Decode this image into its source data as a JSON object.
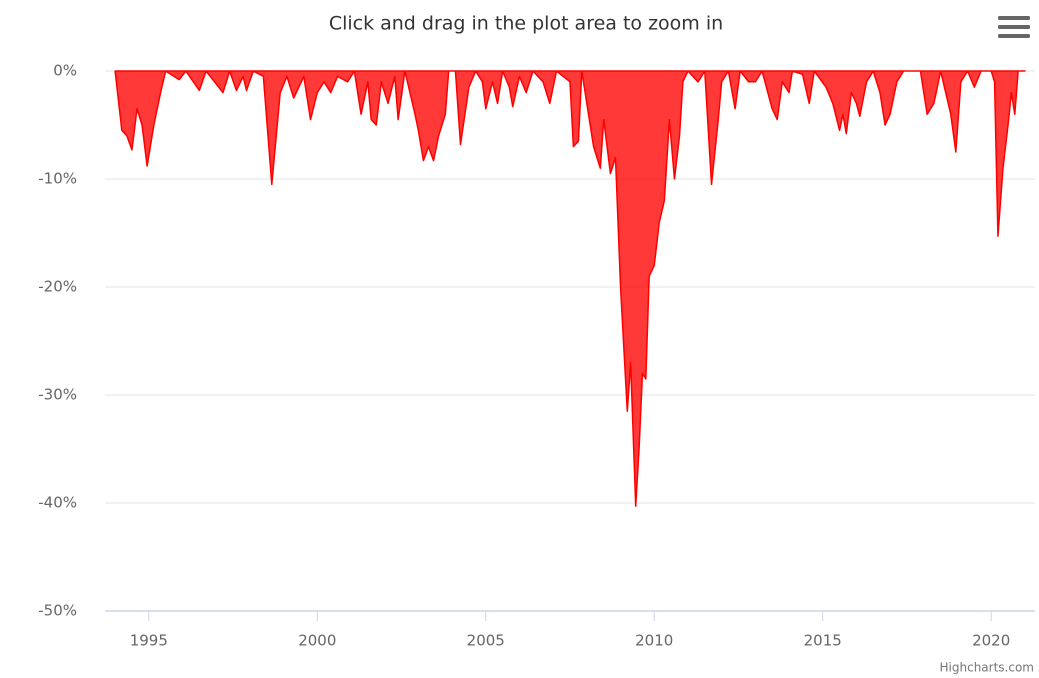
{
  "chart_data": {
    "type": "area",
    "title": "Click and drag in the plot area to zoom in",
    "credits": "Highcharts.com",
    "color": "#ff0000",
    "grid": true,
    "xlim": [
      1993.7,
      2021.3
    ],
    "xticks": [
      1995,
      2000,
      2005,
      2010,
      2015,
      2020
    ],
    "ylim": [
      -50,
      0
    ],
    "yticks": [
      {
        "value": 0,
        "label": "0%"
      },
      {
        "value": -10,
        "label": "-10%"
      },
      {
        "value": -20,
        "label": "-20%"
      },
      {
        "value": -30,
        "label": "-30%"
      },
      {
        "value": -40,
        "label": "-40%"
      },
      {
        "value": -50,
        "label": "-50%"
      }
    ],
    "x": [
      1994.0,
      1994.2,
      1994.35,
      1994.5,
      1994.65,
      1994.8,
      1994.95,
      1995.15,
      1995.35,
      1995.5,
      1995.9,
      1996.1,
      1996.5,
      1996.7,
      1997.2,
      1997.4,
      1997.6,
      1997.8,
      1997.9,
      1998.1,
      1998.4,
      1998.65,
      1998.9,
      1999.1,
      1999.3,
      1999.6,
      1999.8,
      2000.0,
      2000.2,
      2000.4,
      2000.6,
      2000.9,
      2001.1,
      2001.3,
      2001.5,
      2001.6,
      2001.75,
      2001.9,
      2002.1,
      2002.3,
      2002.4,
      2002.6,
      2002.9,
      2003.0,
      2003.15,
      2003.3,
      2003.45,
      2003.6,
      2003.8,
      2003.9,
      2004.1,
      2004.25,
      2004.5,
      2004.7,
      2004.9,
      2005.0,
      2005.2,
      2005.35,
      2005.5,
      2005.7,
      2005.8,
      2006.0,
      2006.2,
      2006.4,
      2006.7,
      2006.9,
      2007.1,
      2007.5,
      2007.6,
      2007.75,
      2007.85,
      2008.0,
      2008.2,
      2008.4,
      2008.5,
      2008.7,
      2008.85,
      2009.0,
      2009.2,
      2009.3,
      2009.45,
      2009.55,
      2009.65,
      2009.75,
      2009.85,
      2010.0,
      2010.15,
      2010.3,
      2010.45,
      2010.6,
      2010.75,
      2010.85,
      2011.0,
      2011.3,
      2011.5,
      2011.7,
      2011.9,
      2012.0,
      2012.2,
      2012.4,
      2012.55,
      2012.8,
      2013.0,
      2013.2,
      2013.5,
      2013.65,
      2013.8,
      2014.0,
      2014.1,
      2014.4,
      2014.6,
      2014.75,
      2015.1,
      2015.3,
      2015.5,
      2015.6,
      2015.7,
      2015.85,
      2016.0,
      2016.1,
      2016.3,
      2016.5,
      2016.7,
      2016.85,
      2017.0,
      2017.2,
      2017.4,
      2017.9,
      2018.1,
      2018.3,
      2018.5,
      2018.8,
      2018.95,
      2019.1,
      2019.3,
      2019.5,
      2019.7,
      2020.0,
      2020.1,
      2020.2,
      2020.35,
      2020.5,
      2020.6,
      2020.7,
      2020.8,
      2021.0
    ],
    "values": [
      0,
      -5.5,
      -6,
      -7.3,
      -3.5,
      -5,
      -8.8,
      -5,
      -2,
      0,
      -0.8,
      0,
      -1.8,
      0,
      -2,
      0,
      -1.8,
      -0.5,
      -1.8,
      0,
      -0.5,
      -10.5,
      -2,
      -0.5,
      -2.5,
      -0.5,
      -4.5,
      -2,
      -1,
      -2,
      -0.5,
      -1,
      0,
      -4,
      -1,
      -4.5,
      -5,
      -1,
      -3,
      -0.5,
      -4.5,
      0,
      -4,
      -5.5,
      -8.3,
      -7,
      -8.3,
      -6,
      -4,
      0,
      0,
      -6.8,
      -1.5,
      0,
      -1,
      -3.5,
      -1,
      -3,
      0,
      -1.5,
      -3.3,
      -0.5,
      -2,
      0,
      -1,
      -3,
      0,
      -1,
      -7,
      -6.5,
      0,
      -3,
      -7,
      -9,
      -4.5,
      -9.5,
      -8,
      -20,
      -31.5,
      -27,
      -40.3,
      -35,
      -28,
      -28.5,
      -19,
      -18,
      -14,
      -12,
      -4.5,
      -10,
      -6,
      -1,
      0,
      -1,
      0,
      -10.5,
      -4.5,
      -1,
      0,
      -3.5,
      0,
      -1,
      -1,
      0,
      -3.5,
      -4.5,
      -1,
      -2,
      0,
      -0.3,
      -3,
      0,
      -1.5,
      -3,
      -5.5,
      -4,
      -5.8,
      -2,
      -3,
      -4.2,
      -1,
      0,
      -2,
      -5,
      -4,
      -1,
      0,
      0,
      -4,
      -3,
      0,
      -4,
      -7.5,
      -1,
      0,
      -1.5,
      0,
      0,
      -1,
      -15.3,
      -9,
      -5,
      -2,
      -4,
      0,
      0
    ]
  }
}
